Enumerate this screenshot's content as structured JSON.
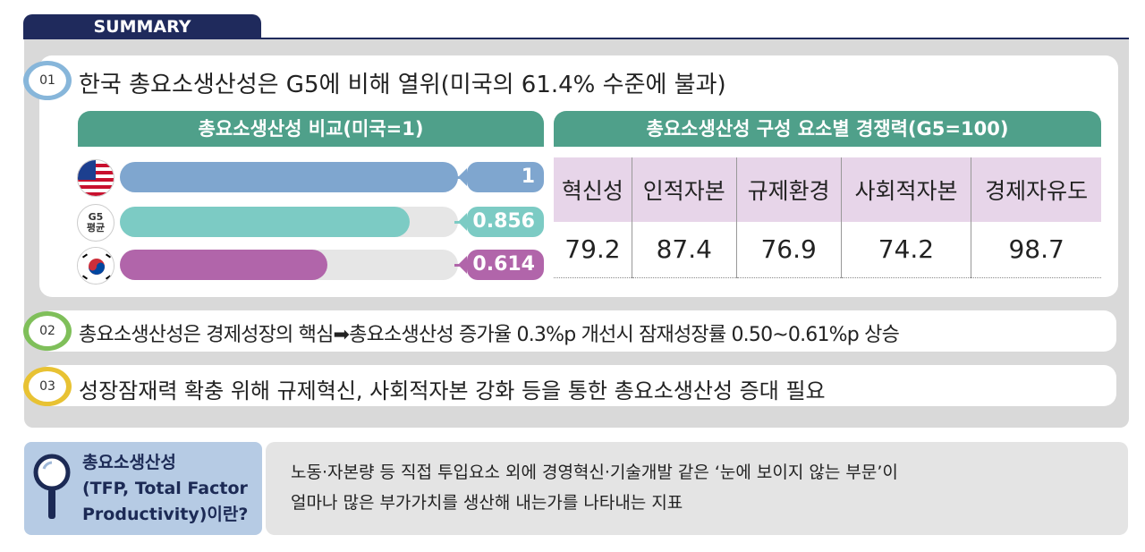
{
  "header": {
    "tab_label": "SUMMARY"
  },
  "points": [
    {
      "num": "01",
      "text": "한국 총요소생산성은 G5에 비해 열위(미국의 61.4% 수준에 불과)"
    },
    {
      "num": "02",
      "text": "총요소생산성은 경제성장의 핵심➡총요소생산성 증가율 0.3%p 개선시 잠재성장률 0.50~0.61%p 상승"
    },
    {
      "num": "03",
      "text": "성장잠재력 확충 위해 규제혁신, 사회적자본 강화 등을 통한 총요소생산성 증대 필요"
    }
  ],
  "colors": {
    "navy": "#1f2a5c",
    "teal_header": "#4fa08a",
    "us": "#7fa6cf",
    "g5": "#7ccbc4",
    "korea": "#b165aa",
    "badge1": "#87b6da",
    "badge2": "#7fbf5a",
    "badge3": "#e8c233"
  },
  "chart_data": [
    {
      "type": "bar",
      "title": "총요소생산성 비교(미국=1)",
      "categories": [
        "미국",
        "G5 평균",
        "한국"
      ],
      "values": [
        1,
        0.856,
        0.614
      ],
      "value_labels": [
        "1",
        "0.856",
        "0.614"
      ],
      "flag_labels": {
        "g5_line1": "G5",
        "g5_line2": "평균"
      },
      "ylim": [
        0,
        1
      ]
    },
    {
      "type": "table",
      "title": "총요소생산성 구성 요소별 경쟁력(G5=100)",
      "columns": [
        "혁신성",
        "인적자본",
        "규제환경",
        "사회적자본",
        "경제자유도"
      ],
      "values": [
        "79.2",
        "87.4",
        "76.9",
        "74.2",
        "98.7"
      ]
    }
  ],
  "definition": {
    "title_lines": [
      "총요소생산성",
      "(TFP, Total Factor",
      "Productivity)이란?"
    ],
    "icon": "magnifier-icon",
    "desc_lines": [
      "노동·자본량 등 직접 투입요소 외에 경영혁신·기술개발 같은 ‘눈에 보이지 않는 부문’이",
      "얼마나 많은 부가가치를 생산해 내는가를 나타내는 지표"
    ]
  }
}
